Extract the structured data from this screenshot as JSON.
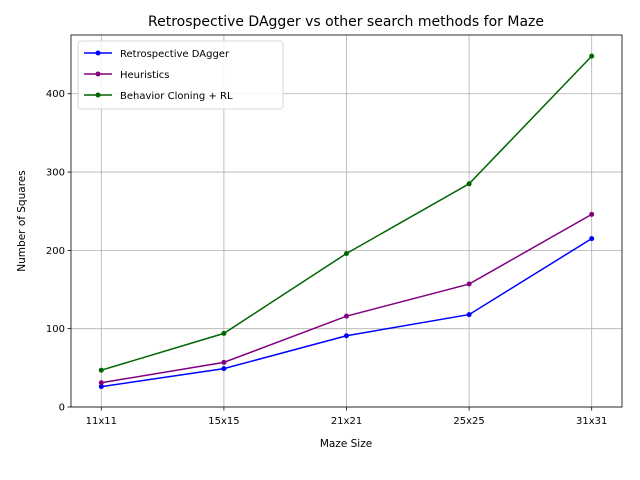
{
  "chart_data": {
    "type": "line",
    "title": "Retrospective DAgger vs other search methods for Maze",
    "xlabel": "Maze Size",
    "ylabel": "Number of Squares",
    "categories": [
      "11x11",
      "15x15",
      "21x21",
      "25x25",
      "31x31"
    ],
    "ylim": [
      0,
      475
    ],
    "yticks": [
      0,
      100,
      200,
      300,
      400
    ],
    "grid": true,
    "legend_position": "top-left",
    "series": [
      {
        "name": "Retrospective DAgger",
        "color": "#0000ff",
        "values": [
          26,
          49,
          91,
          118,
          215
        ]
      },
      {
        "name": "Heuristics",
        "color": "#800080",
        "values": [
          31,
          57,
          116,
          157,
          246
        ]
      },
      {
        "name": "Behavior Cloning + RL",
        "color": "#006400",
        "values": [
          47,
          94,
          196,
          285,
          448
        ]
      }
    ]
  }
}
